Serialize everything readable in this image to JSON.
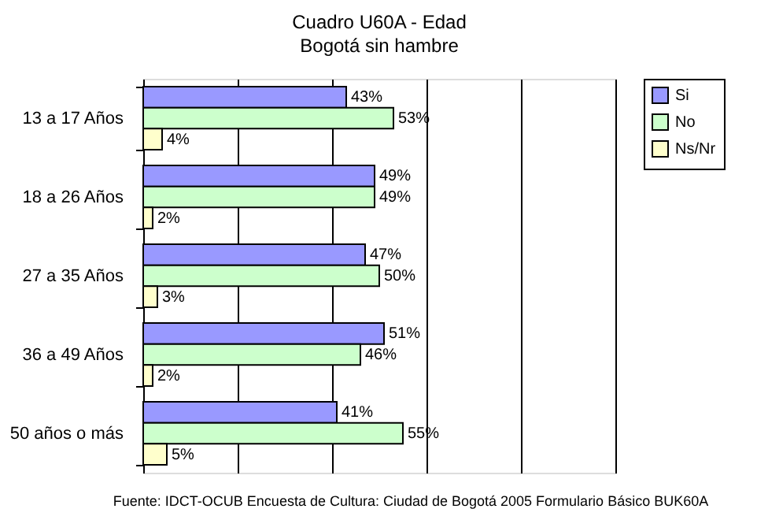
{
  "chart_data": {
    "type": "bar",
    "orientation": "horizontal",
    "title": "Cuadro U60A - Edad",
    "subtitle": "Bogotá sin hambre",
    "categories": [
      "13 a 17 Años",
      "18 a 26 Años",
      "27 a 35 Años",
      "36 a 49 Años",
      "50 años o más"
    ],
    "series": [
      {
        "name": "Si",
        "color": "#9999ff",
        "values": [
          43,
          49,
          47,
          51,
          41
        ],
        "value_labels": [
          "43%",
          "49%",
          "47%",
          "51%",
          "41%"
        ]
      },
      {
        "name": "No",
        "color": "#ccffcc",
        "values": [
          53,
          49,
          50,
          46,
          55
        ],
        "value_labels": [
          "53%",
          "49%",
          "50%",
          "46%",
          "55%"
        ]
      },
      {
        "name": "Ns/Nr",
        "color": "#ffffcc",
        "values": [
          4,
          2,
          3,
          2,
          5
        ],
        "value_labels": [
          "4%",
          "2%",
          "3%",
          "2%",
          "5%"
        ]
      }
    ],
    "xlim": [
      0,
      100
    ],
    "xticks": [
      {
        "value": 0,
        "label": null
      },
      {
        "value": 20,
        "label": null
      },
      {
        "value": 40,
        "label": null
      },
      {
        "value": 60,
        "label": null
      },
      {
        "value": 80,
        "label": null
      },
      {
        "value": 100,
        "label": null
      }
    ],
    "tick_labels": "y",
    "grid": "x",
    "legend": "right",
    "annotations": [
      "Fuente: IDCT-OCUB Encuesta de Cultura: Ciudad de Bogotá 2005 Formulario Básico BUK60A"
    ]
  }
}
